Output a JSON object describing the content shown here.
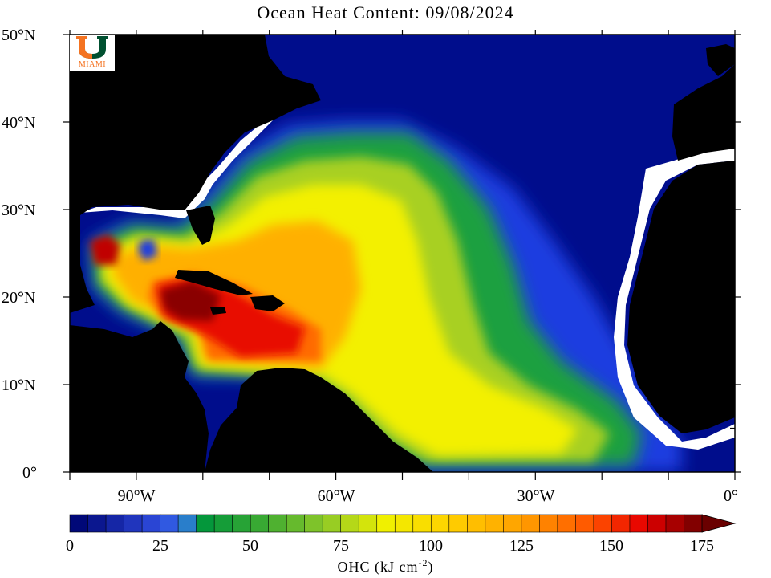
{
  "title": "Ocean Heat Content: 09/08/2024",
  "y_axis": {
    "labels": [
      "50°N",
      "40°N",
      "30°N",
      "20°N",
      "10°N",
      "0°"
    ]
  },
  "x_axis": {
    "labels": [
      "90°W",
      "60°W",
      "30°W",
      "0°"
    ]
  },
  "colorbar": {
    "tick_labels": [
      "0",
      "25",
      "50",
      "75",
      "100",
      "125",
      "150",
      "175"
    ],
    "units_main": "OHC (kJ cm",
    "units_sup": "-2",
    "units_close": ")",
    "min": 0,
    "max": 175,
    "step": 5
  },
  "logo": {
    "text": "MIAMI"
  },
  "colors": {
    "land": "#000000",
    "low_ohc_ocean": "#000d8c",
    "coast_gap": "#ffffff",
    "logo_orange": "#f47321",
    "logo_green": "#005030"
  },
  "map_extent": {
    "lon_min": -100,
    "lon_max": 0,
    "lat_min": 0,
    "lat_max": 50
  }
}
